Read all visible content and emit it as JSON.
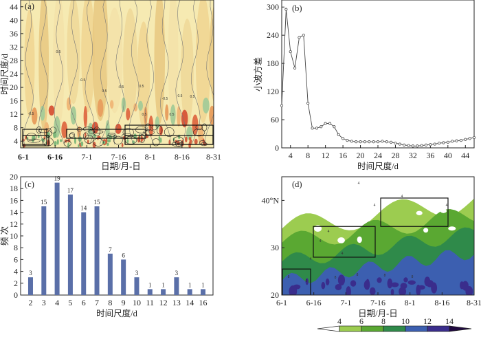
{
  "chart_data": [
    {
      "panel": "(a)",
      "type": "heatmap",
      "title": "",
      "xlabel": "日期/月-日",
      "ylabel": "时间尺度/d",
      "x_ticks": [
        "6-1",
        "6-16",
        "7-1",
        "7-16",
        "8-1",
        "8-16",
        "8-31"
      ],
      "y_ticks": [
        4,
        8,
        12,
        16,
        20,
        24,
        28,
        32,
        36,
        40,
        44
      ],
      "ylim": [
        2,
        46
      ],
      "contour_labels": [
        "0.5",
        "-0.5"
      ],
      "note_labels": [
        "0.5",
        "-0.5",
        "-0.5",
        "0.5",
        "-0.5",
        "0.5",
        "-0.5",
        "0.5",
        "0.5",
        "0.5",
        "0.5"
      ]
    },
    {
      "panel": "(b)",
      "type": "line",
      "title": "",
      "xlabel": "时间尺度/d",
      "ylabel": "小波方差",
      "x_ticks": [
        4,
        8,
        12,
        16,
        20,
        24,
        28,
        32,
        36,
        40,
        44
      ],
      "y_ticks": [
        0,
        60,
        120,
        180,
        240,
        300
      ],
      "xlim": [
        2,
        46
      ],
      "ylim": [
        0,
        315
      ],
      "series": [
        {
          "x": [
            2,
            3,
            4,
            5,
            6,
            7,
            8,
            9,
            10,
            11,
            12,
            13,
            14,
            15,
            16,
            17,
            18,
            19,
            20,
            21,
            22,
            23,
            24,
            25,
            26,
            27,
            28,
            29,
            30,
            31,
            32,
            33,
            34,
            35,
            36,
            37,
            38,
            39,
            40,
            41,
            42,
            43,
            44,
            45,
            46
          ],
          "values": [
            90,
            295,
            205,
            170,
            235,
            240,
            95,
            42,
            42,
            45,
            52,
            52,
            45,
            28,
            20,
            16,
            14,
            13,
            13,
            13,
            13,
            13,
            13,
            14,
            13,
            12,
            10,
            8,
            6,
            5,
            4,
            4,
            5,
            6,
            7,
            8,
            10,
            11,
            12,
            14,
            15,
            16,
            18,
            20,
            22
          ]
        }
      ]
    },
    {
      "panel": "(c)",
      "type": "bar",
      "title": "",
      "xlabel": "时间尺度/d",
      "ylabel": "频 次",
      "categories": [
        "2",
        "3",
        "4",
        "5",
        "6",
        "7",
        "8",
        "9",
        "10",
        "11",
        "12",
        "13",
        "14",
        "16"
      ],
      "values": [
        3,
        15,
        19,
        17,
        14,
        15,
        7,
        6,
        3,
        1,
        1,
        3,
        1,
        1
      ],
      "y_ticks": [
        0,
        2,
        4,
        6,
        8,
        10,
        12,
        14,
        16,
        18,
        20
      ],
      "ylim": [
        0,
        20
      ],
      "bar_color": "#5a6fa8"
    },
    {
      "panel": "(d)",
      "type": "heatmap",
      "title": "",
      "xlabel": "日期/月-日",
      "ylabel": "",
      "x_ticks": [
        "6-1",
        "6-16",
        "7-1",
        "7-16",
        "8-1",
        "8-16",
        "8-31"
      ],
      "y_ticks": [
        "20",
        "30",
        "40°N"
      ],
      "ylim": [
        20,
        45
      ],
      "contour_labels": [
        "4",
        "4",
        "4",
        "4",
        "4",
        "4",
        "4",
        "8",
        "8",
        "8",
        "8",
        "8",
        "8",
        "4"
      ],
      "colorbar": {
        "levels": [
          "4",
          "6",
          "8",
          "10",
          "12",
          "14"
        ],
        "colors": [
          "#ffffff",
          "#9ccc50",
          "#5aa832",
          "#2f8a4a",
          "#3c5fb0",
          "#3a2d8c",
          "#200a40"
        ]
      }
    }
  ]
}
